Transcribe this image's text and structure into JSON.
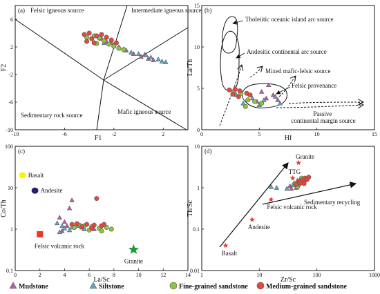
{
  "chart_data": [
    {
      "id": "a",
      "type": "scatter",
      "panel_label": "(a)",
      "xlabel": "F1",
      "ylabel": "F2",
      "xlim": [
        -10,
        4
      ],
      "ylim": [
        -10,
        8
      ],
      "xticks": [
        -10,
        -6,
        -2,
        2
      ],
      "yticks": [
        -10,
        -6,
        -2,
        2,
        6
      ],
      "field_labels": [
        "Felsic igneous source",
        "Intermediate igneous source",
        "Sedimentary rock source",
        "Mafic igneous source"
      ],
      "series": [
        {
          "name": "Mudstone",
          "points": [
            [
              -3.0,
              3.2
            ],
            [
              -2.6,
              2.8
            ],
            [
              -2.2,
              2.6
            ],
            [
              -1.6,
              2.0
            ],
            [
              -1.0,
              1.5
            ],
            [
              -0.4,
              1.0
            ],
            [
              0.2,
              0.6
            ],
            [
              0.8,
              0.3
            ],
            [
              1.2,
              0.1
            ],
            [
              0.5,
              0.9
            ]
          ]
        },
        {
          "name": "Siltstone",
          "points": [
            [
              -2.8,
              2.6
            ],
            [
              -2.0,
              2.3
            ],
            [
              -1.2,
              1.7
            ],
            [
              -0.6,
              1.2
            ],
            [
              0.0,
              1.0
            ],
            [
              0.6,
              0.8
            ],
            [
              1.0,
              0.5
            ],
            [
              1.6,
              0.2
            ],
            [
              1.9,
              -0.1
            ],
            [
              2.2,
              -0.2
            ]
          ]
        },
        {
          "name": "Fine-grained sandstone",
          "points": [
            [
              -4.2,
              3.4
            ],
            [
              -3.6,
              3.6
            ],
            [
              -3.2,
              3.3
            ],
            [
              -2.8,
              2.9
            ],
            [
              -2.4,
              2.4
            ],
            [
              -2.0,
              2.1
            ],
            [
              -1.6,
              1.8
            ],
            [
              -1.2,
              1.6
            ],
            [
              -3.4,
              2.5
            ]
          ]
        },
        {
          "name": "Medium-grained sandstone",
          "points": [
            [
              -4.4,
              3.8
            ],
            [
              -4.0,
              4.0
            ],
            [
              -3.8,
              3.2
            ],
            [
              -3.4,
              3.6
            ],
            [
              -3.0,
              3.8
            ],
            [
              -2.6,
              3.4
            ],
            [
              -2.2,
              3.0
            ],
            [
              -1.8,
              2.6
            ],
            [
              -4.2,
              2.8
            ],
            [
              -3.6,
              2.6
            ]
          ]
        }
      ]
    },
    {
      "id": "b",
      "type": "scatter",
      "panel_label": "(b)",
      "xlabel": "Hf",
      "ylabel": "La/Th",
      "xlim": [
        0,
        15
      ],
      "ylim": [
        0,
        15
      ],
      "xticks": [
        0,
        5,
        10,
        15
      ],
      "yticks": [
        0,
        5,
        10,
        15
      ],
      "field_labels": [
        "Tholeiitic oceanic island arc source",
        "Andesitic continental arc source",
        "Mixed mafic-felsic source",
        "Felsic provenance",
        "Passive continental margin source"
      ],
      "series": [
        {
          "name": "Mudstone",
          "points": [
            [
              5.8,
              5.4
            ],
            [
              5.2,
              4.6
            ],
            [
              6.2,
              4.2
            ],
            [
              4.8,
              3.4
            ],
            [
              6.6,
              3.6
            ],
            [
              5.6,
              3.8
            ]
          ]
        },
        {
          "name": "Siltstone",
          "points": [
            [
              3.0,
              4.2
            ],
            [
              3.6,
              3.2
            ],
            [
              4.4,
              3.8
            ],
            [
              5.4,
              3.6
            ],
            [
              6.4,
              4.0
            ],
            [
              6.8,
              3.2
            ],
            [
              5.0,
              3.0
            ]
          ]
        },
        {
          "name": "Fine-grained sandstone",
          "points": [
            [
              2.8,
              4.6
            ],
            [
              3.4,
              4.4
            ],
            [
              4.0,
              3.6
            ],
            [
              4.6,
              3.4
            ],
            [
              5.2,
              3.2
            ],
            [
              3.8,
              2.8
            ]
          ]
        },
        {
          "name": "Medium-grained sandstone",
          "points": [
            [
              2.4,
              4.8
            ],
            [
              2.9,
              4.9
            ],
            [
              3.3,
              4.7
            ],
            [
              3.9,
              4.4
            ],
            [
              2.7,
              4.3
            ],
            [
              3.2,
              4.0
            ],
            [
              4.2,
              4.2
            ]
          ]
        }
      ]
    },
    {
      "id": "c",
      "type": "scatter",
      "panel_label": "(c)",
      "xlabel": "La/Sc",
      "ylabel": "Co/Th",
      "xlim": [
        0,
        14
      ],
      "ylim": [
        0.1,
        100
      ],
      "yscale": "log",
      "xticks": [
        0,
        2,
        4,
        6,
        8,
        10,
        12,
        14
      ],
      "yticks": [
        0.1,
        1,
        10,
        100
      ],
      "references": [
        {
          "name": "Basalt",
          "x": 0.6,
          "y": 20,
          "color": "#fff200",
          "shape": "ellipse"
        },
        {
          "name": "Andesite",
          "x": 1.6,
          "y": 8.5,
          "color": "#2e1a6e",
          "shape": "ellipse"
        },
        {
          "name": "Felsic volcanic rock",
          "x": 2.0,
          "y": 0.75,
          "color": "#e8392b",
          "shape": "square"
        },
        {
          "name": "Granite",
          "x": 9.6,
          "y": 0.32,
          "color": "#1a9c3c",
          "shape": "star"
        }
      ],
      "series": [
        {
          "name": "Mudstone",
          "points": [
            [
              4.6,
              5.0
            ],
            [
              4.4,
              3.2
            ],
            [
              3.6,
              1.9
            ],
            [
              4.0,
              1.5
            ],
            [
              5.0,
              1.3
            ],
            [
              4.2,
              1.2
            ],
            [
              6.4,
              1.0
            ],
            [
              5.4,
              1.1
            ],
            [
              3.8,
              0.9
            ]
          ]
        },
        {
          "name": "Siltstone",
          "points": [
            [
              3.4,
              1.4
            ],
            [
              3.8,
              1.2
            ],
            [
              4.6,
              1.1
            ],
            [
              5.2,
              1.2
            ],
            [
              4.4,
              0.95
            ],
            [
              3.6,
              0.85
            ],
            [
              5.6,
              1.0
            ],
            [
              4.0,
              1.05
            ]
          ]
        },
        {
          "name": "Fine-grained sandstone",
          "points": [
            [
              4.8,
              1.1
            ],
            [
              5.6,
              1.2
            ],
            [
              6.2,
              1.15
            ],
            [
              6.8,
              1.05
            ],
            [
              7.4,
              1.1
            ],
            [
              7.8,
              1.0
            ],
            [
              6.0,
              0.95
            ],
            [
              5.2,
              1.25
            ],
            [
              7.0,
              0.9
            ]
          ]
        },
        {
          "name": "Medium-grained sandstone",
          "points": [
            [
              6.6,
              5.5
            ],
            [
              5.0,
              1.35
            ],
            [
              5.8,
              1.3
            ],
            [
              6.4,
              1.25
            ],
            [
              7.0,
              1.2
            ],
            [
              4.6,
              1.3
            ],
            [
              5.4,
              1.15
            ],
            [
              6.2,
              1.05
            ],
            [
              7.2,
              1.3
            ]
          ]
        }
      ]
    },
    {
      "id": "d",
      "type": "scatter",
      "panel_label": "(d)",
      "xlabel": "Zr/Sc",
      "ylabel": "Th/Sc",
      "xlim": [
        1,
        1000
      ],
      "ylim": [
        0.01,
        10
      ],
      "xscale": "log",
      "yscale": "log",
      "xticks": [
        1,
        10,
        100,
        1000
      ],
      "yticks": [
        0.01,
        0.1,
        1,
        10
      ],
      "references": [
        {
          "name": "Granite",
          "x": 48,
          "y": 4.0,
          "color": "#e8392b",
          "shape": "star"
        },
        {
          "name": "TTG",
          "x": 38,
          "y": 1.7,
          "color": "#e8392b",
          "shape": "star"
        },
        {
          "name": "Felsic volcanic rock",
          "x": 16,
          "y": 0.52,
          "color": "#e8392b",
          "shape": "star"
        },
        {
          "name": "Andesite",
          "x": 7.5,
          "y": 0.17,
          "color": "#e8392b",
          "shape": "star"
        },
        {
          "name": "Basalt",
          "x": 2.6,
          "y": 0.04,
          "color": "#e8392b",
          "shape": "star"
        }
      ],
      "annotations": [
        "Sedimentary recycling"
      ],
      "series": [
        {
          "name": "Mudstone",
          "points": [
            [
              34,
              1.1
            ],
            [
              40,
              1.3
            ],
            [
              46,
              1.5
            ],
            [
              52,
              1.4
            ],
            [
              58,
              1.6
            ],
            [
              36,
              0.95
            ],
            [
              44,
              1.0
            ]
          ]
        },
        {
          "name": "Siltstone",
          "points": [
            [
              16,
              1.05
            ],
            [
              20,
              1.0
            ],
            [
              30,
              0.95
            ],
            [
              38,
              1.15
            ],
            [
              48,
              1.2
            ],
            [
              56,
              1.3
            ]
          ]
        },
        {
          "name": "Fine-grained sandstone",
          "points": [
            [
              42,
              1.25
            ],
            [
              50,
              1.35
            ],
            [
              60,
              1.45
            ],
            [
              66,
              1.55
            ],
            [
              54,
              1.7
            ],
            [
              46,
              1.05
            ]
          ]
        },
        {
          "name": "Medium-grained sandstone",
          "points": [
            [
              44,
              1.2
            ],
            [
              50,
              1.45
            ],
            [
              56,
              1.55
            ],
            [
              62,
              1.7
            ],
            [
              68,
              1.6
            ],
            [
              72,
              1.8
            ],
            [
              52,
              1.3
            ],
            [
              60,
              1.25
            ]
          ]
        }
      ]
    }
  ],
  "legend": [
    {
      "name": "Mudstone",
      "shape": "triangle",
      "color": "#c05cb0"
    },
    {
      "name": "Siltstone",
      "shape": "triangle",
      "color": "#5fa8c8"
    },
    {
      "name": "Fine-grained sandstone",
      "shape": "circle",
      "color": "#8dc63f"
    },
    {
      "name": "Medium-grained sandstone",
      "shape": "circle",
      "color": "#e8473a"
    }
  ]
}
